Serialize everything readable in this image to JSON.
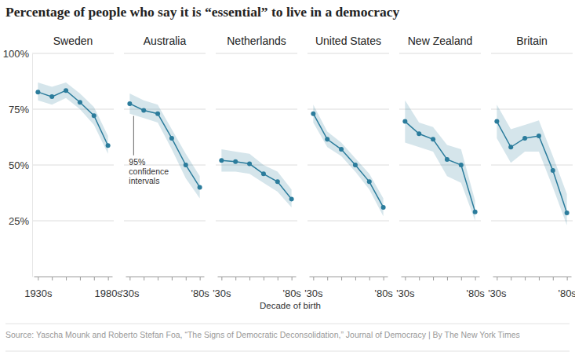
{
  "title": "Percentage of people who say it is “essential” to live in a democracy",
  "x_label": "Decade of birth",
  "source": "Source: Yascha Mounk and Roberto Stefan Foa, “The Signs of Democratic Deconsolidation,” Journal of Democracy | By The New York Times",
  "chart_data": [
    {
      "type": "line",
      "title": "Sweden",
      "categories": [
        "1930s",
        null,
        null,
        null,
        null,
        "1980s"
      ],
      "values": [
        82.7,
        80.6,
        83.4,
        78.1,
        72.1,
        58.7
      ],
      "lower": [
        79,
        77,
        80,
        75,
        68,
        55
      ],
      "upper": [
        87,
        85,
        87,
        82,
        76,
        63
      ],
      "color": "#2b7c9c",
      "marker": "circle",
      "ylim": [
        0,
        100
      ],
      "yticks": [
        {
          "value": 25,
          "label": "25%"
        },
        {
          "value": 50,
          "label": "50%"
        },
        {
          "value": 75,
          "label": "75%"
        },
        {
          "value": 100,
          "label": "100%"
        }
      ],
      "grid": true
    },
    {
      "type": "line",
      "title": "Australia",
      "categories": [
        "'30s",
        null,
        null,
        null,
        null,
        "'80s"
      ],
      "values": [
        77.5,
        74.5,
        73,
        62,
        50,
        40
      ],
      "lower": [
        73,
        71,
        69,
        57,
        44,
        35
      ],
      "upper": [
        82,
        79,
        77,
        66,
        55,
        45
      ],
      "color": "#2b7c9c",
      "marker": "circle",
      "ylim": [
        0,
        100
      ],
      "yticks": [
        {
          "value": 25,
          "label": "25%"
        },
        {
          "value": 50,
          "label": "50%"
        },
        {
          "value": 75,
          "label": "75%"
        },
        {
          "value": 100,
          "label": "100%"
        }
      ],
      "grid": true,
      "tick_labels": "x",
      "annotations": [
        {
          "text": "95% confidence intervals"
        }
      ]
    },
    {
      "type": "line",
      "title": "Netherlands",
      "categories": [
        "'30s",
        null,
        null,
        null,
        null,
        "'80s"
      ],
      "values": [
        52,
        51.5,
        50.5,
        46,
        42.5,
        34.7
      ],
      "lower": [
        47,
        47,
        46,
        42,
        38,
        31
      ],
      "upper": [
        57,
        56,
        55,
        50,
        47,
        39
      ],
      "color": "#2b7c9c",
      "marker": "circle",
      "ylim": [
        0,
        100
      ],
      "yticks": [
        {
          "value": 25,
          "label": "25%"
        },
        {
          "value": 50,
          "label": "50%"
        },
        {
          "value": 75,
          "label": "75%"
        },
        {
          "value": 100,
          "label": "100%"
        }
      ],
      "grid": true,
      "tick_labels": "x"
    },
    {
      "type": "line",
      "title": "United States",
      "categories": [
        "'30s",
        null,
        null,
        null,
        null,
        "'80s"
      ],
      "values": [
        73,
        61.5,
        57,
        50,
        42.5,
        31
      ],
      "lower": [
        69,
        58,
        54,
        47,
        39,
        27
      ],
      "upper": [
        77,
        65,
        60,
        53,
        46,
        35
      ],
      "color": "#2b7c9c",
      "marker": "circle",
      "ylim": [
        0,
        100
      ],
      "yticks": [
        {
          "value": 25,
          "label": "25%"
        },
        {
          "value": 50,
          "label": "50%"
        },
        {
          "value": 75,
          "label": "75%"
        },
        {
          "value": 100,
          "label": "100%"
        }
      ],
      "grid": true,
      "tick_labels": "x"
    },
    {
      "type": "line",
      "title": "New Zealand",
      "categories": [
        "'30s",
        null,
        null,
        null,
        null,
        "'80s"
      ],
      "values": [
        69.5,
        64,
        61.5,
        52.5,
        50,
        29
      ],
      "lower": [
        60,
        58,
        56,
        45,
        42,
        25
      ],
      "upper": [
        79,
        69,
        67,
        59,
        57,
        34
      ],
      "color": "#2b7c9c",
      "marker": "circle",
      "ylim": [
        0,
        100
      ],
      "yticks": [
        {
          "value": 25,
          "label": "25%"
        },
        {
          "value": 50,
          "label": "50%"
        },
        {
          "value": 75,
          "label": "75%"
        },
        {
          "value": 100,
          "label": "100%"
        }
      ],
      "grid": true,
      "tick_labels": "x"
    },
    {
      "type": "line",
      "title": "Britain",
      "categories": [
        "'30s",
        null,
        null,
        null,
        null,
        "'80s"
      ],
      "values": [
        69.5,
        58,
        62,
        63,
        47.5,
        28.5
      ],
      "lower": [
        62,
        51,
        56,
        56,
        40,
        23
      ],
      "upper": [
        77,
        66,
        68,
        70,
        54,
        37
      ],
      "color": "#2b7c9c",
      "marker": "circle",
      "ylim": [
        0,
        100
      ],
      "yticks": [
        {
          "value": 25,
          "label": "25%"
        },
        {
          "value": 50,
          "label": "50%"
        },
        {
          "value": 75,
          "label": "75%"
        },
        {
          "value": 100,
          "label": "100%"
        }
      ],
      "grid": true,
      "tick_labels": "x"
    }
  ]
}
